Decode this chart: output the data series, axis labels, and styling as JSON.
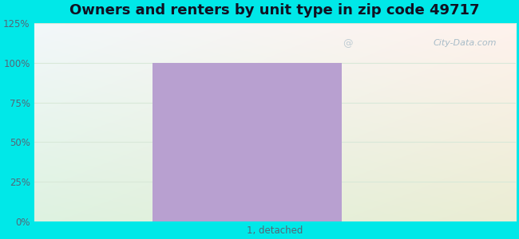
{
  "title": "Owners and renters by unit type in zip code 49717",
  "categories": [
    "1, detached"
  ],
  "values": [
    100
  ],
  "bar_color": "#b8a0d0",
  "bar_width": 0.55,
  "ylim": [
    0,
    125
  ],
  "yticks": [
    0,
    25,
    50,
    75,
    100,
    125
  ],
  "yticklabels": [
    "0%",
    "25%",
    "50%",
    "75%",
    "100%",
    "125%"
  ],
  "background_color": "#00e8e8",
  "title_fontsize": 13,
  "title_color": "#111122",
  "tick_color": "#556677",
  "watermark_text": "City-Data.com",
  "watermark_color": "#a8bcc8",
  "grid_color": "#d8e8d8",
  "bar_edge_color": "none"
}
